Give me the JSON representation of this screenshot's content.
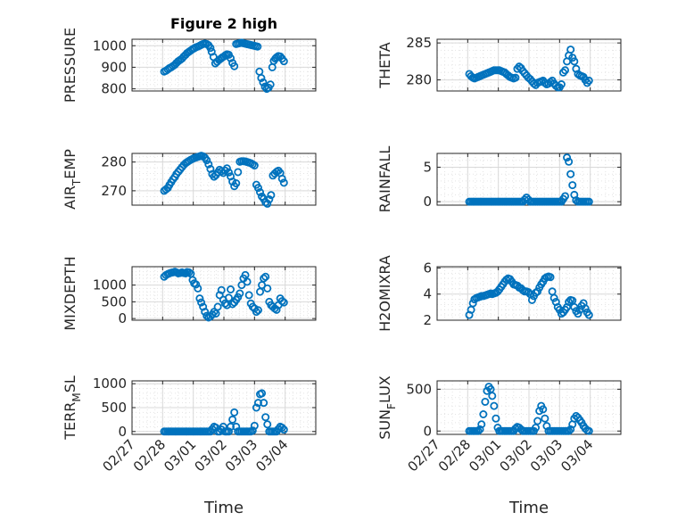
{
  "figure": {
    "title": "Figure 2 high"
  },
  "colors": {
    "marker": "#0072BD",
    "axis": "#262626",
    "grid": "#d9d9d9"
  },
  "chart_data": [
    {
      "type": "scatter",
      "ylabel_main": "PRESSURE",
      "ylabel_sub": "",
      "ylabel_tail": "",
      "xlabel": "",
      "yticks": [
        800,
        900,
        1000
      ],
      "ylim": [
        790,
        1030
      ],
      "xticks": [
        "02/27",
        "02/28",
        "03/01",
        "03/02",
        "03/03",
        "03/04"
      ],
      "xlim": [
        0,
        6
      ],
      "show_xticklabels": false,
      "x": [
        1.05,
        1.11,
        1.17,
        1.22,
        1.28,
        1.34,
        1.4,
        1.45,
        1.51,
        1.57,
        1.63,
        1.69,
        1.75,
        1.8,
        1.86,
        1.92,
        1.98,
        2.03,
        2.09,
        2.15,
        2.21,
        2.26,
        2.32,
        2.38,
        2.44,
        2.5,
        2.56,
        2.6,
        2.66,
        2.72,
        2.78,
        2.84,
        2.9,
        2.95,
        3.0,
        3.05,
        3.1,
        3.16,
        3.22,
        3.28,
        3.34,
        3.4,
        3.46,
        3.52,
        3.58,
        3.62,
        3.68,
        3.74,
        3.8,
        3.86,
        3.92,
        3.98,
        4.04,
        4.1,
        4.16,
        4.22,
        4.28,
        4.34,
        4.4,
        4.46,
        4.52,
        4.58,
        4.63,
        4.68,
        4.72,
        4.78,
        4.84,
        4.9,
        4.96
      ],
      "y": [
        880,
        884,
        890,
        896,
        900,
        906,
        912,
        920,
        928,
        934,
        940,
        950,
        958,
        966,
        972,
        978,
        984,
        988,
        993,
        996,
        1000,
        1004,
        1008,
        1010,
        1008,
        1002,
        990,
        972,
        948,
        918,
        926,
        934,
        940,
        946,
        950,
        956,
        960,
        958,
        942,
        920,
        905,
        1008,
        1010,
        1012,
        1014,
        1012,
        1010,
        1008,
        1006,
        1004,
        1002,
        1000,
        998,
        996,
        880,
        850,
        830,
        810,
        800,
        805,
        820,
        900,
        930,
        940,
        946,
        952,
        950,
        940,
        928
      ]
    },
    {
      "type": "scatter",
      "ylabel_main": "THETA",
      "ylabel_sub": "",
      "ylabel_tail": "",
      "xlabel": "",
      "yticks": [
        280,
        285
      ],
      "ylim": [
        278.5,
        285.5
      ],
      "xticks": [
        "02/27",
        "02/28",
        "03/01",
        "03/02",
        "03/03",
        "03/04"
      ],
      "xlim": [
        0,
        6
      ],
      "show_xticklabels": false,
      "x": [
        1.05,
        1.11,
        1.17,
        1.22,
        1.28,
        1.34,
        1.4,
        1.45,
        1.51,
        1.57,
        1.63,
        1.69,
        1.75,
        1.8,
        1.86,
        1.92,
        1.98,
        2.03,
        2.09,
        2.15,
        2.21,
        2.26,
        2.32,
        2.38,
        2.44,
        2.5,
        2.56,
        2.62,
        2.68,
        2.74,
        2.8,
        2.86,
        2.92,
        2.98,
        3.04,
        3.1,
        3.16,
        3.22,
        3.28,
        3.34,
        3.4,
        3.46,
        3.52,
        3.58,
        3.64,
        3.7,
        3.76,
        3.82,
        3.88,
        3.94,
        4.0,
        4.06,
        4.12,
        4.18,
        4.24,
        4.3,
        4.36,
        4.42,
        4.48,
        4.54,
        4.6,
        4.66,
        4.72,
        4.78,
        4.84,
        4.9,
        4.96
      ],
      "y": [
        280.8,
        280.5,
        280.3,
        280.2,
        280.3,
        280.4,
        280.5,
        280.6,
        280.7,
        280.8,
        280.9,
        281.0,
        281.1,
        281.2,
        281.3,
        281.3,
        281.3,
        281.3,
        281.2,
        281.1,
        281.0,
        280.8,
        280.6,
        280.4,
        280.3,
        280.2,
        280.3,
        281.5,
        281.8,
        281.6,
        281.2,
        280.9,
        280.6,
        280.3,
        280.1,
        279.8,
        279.5,
        279.3,
        279.6,
        279.7,
        279.8,
        279.9,
        279.6,
        279.4,
        279.5,
        279.7,
        279.9,
        279.5,
        279.2,
        279.0,
        279.0,
        279.4,
        281.0,
        281.3,
        282.5,
        283.3,
        284.1,
        283.0,
        282.5,
        281.5,
        280.8,
        280.6,
        280.5,
        280.4,
        280.0,
        279.6,
        279.9
      ]
    },
    {
      "type": "scatter",
      "ylabel_main": "AIR",
      "ylabel_sub": "T",
      "ylabel_tail": "EMP",
      "xlabel": "",
      "yticks": [
        270,
        280
      ],
      "ylim": [
        265,
        283
      ],
      "xticks": [
        "02/27",
        "02/28",
        "03/01",
        "03/02",
        "03/03",
        "03/04"
      ],
      "xlim": [
        0,
        6
      ],
      "show_xticklabels": false,
      "x": [
        1.05,
        1.11,
        1.17,
        1.22,
        1.28,
        1.34,
        1.4,
        1.45,
        1.51,
        1.57,
        1.63,
        1.69,
        1.75,
        1.8,
        1.86,
        1.92,
        1.98,
        2.03,
        2.09,
        2.15,
        2.21,
        2.26,
        2.32,
        2.38,
        2.44,
        2.5,
        2.56,
        2.62,
        2.68,
        2.74,
        2.8,
        2.86,
        2.92,
        2.98,
        3.04,
        3.1,
        3.16,
        3.22,
        3.28,
        3.34,
        3.4,
        3.46,
        3.52,
        3.58,
        3.64,
        3.7,
        3.76,
        3.82,
        3.88,
        3.94,
        4.0,
        4.06,
        4.12,
        4.18,
        4.24,
        4.3,
        4.36,
        4.42,
        4.48,
        4.54,
        4.6,
        4.66,
        4.72,
        4.78,
        4.84,
        4.9,
        4.96
      ],
      "y": [
        270.0,
        270.5,
        271.0,
        272.0,
        273.0,
        274.0,
        274.8,
        275.8,
        276.6,
        277.4,
        278.2,
        279.0,
        279.6,
        280.0,
        280.4,
        280.8,
        281.1,
        281.4,
        281.6,
        281.8,
        282.0,
        282.2,
        282.0,
        281.5,
        280.6,
        279.2,
        277.6,
        275.8,
        274.9,
        275.5,
        276.4,
        277.3,
        276.8,
        276.2,
        277.0,
        277.8,
        276.4,
        275.0,
        273.2,
        271.6,
        272.6,
        276.5,
        280.1,
        280.3,
        280.3,
        280.2,
        280.0,
        279.8,
        279.6,
        279.2,
        278.8,
        272.1,
        271.0,
        269.5,
        268.0,
        267.2,
        266.0,
        265.5,
        267.0,
        268.5,
        275.3,
        276.0,
        276.6,
        277.0,
        276.2,
        274.2,
        272.8
      ]
    },
    {
      "type": "scatter",
      "ylabel_main": "RAINFALL",
      "ylabel_sub": "",
      "ylabel_tail": "",
      "xlabel": "",
      "yticks": [
        0,
        5
      ],
      "ylim": [
        -0.5,
        7
      ],
      "xticks": [
        "02/27",
        "02/28",
        "03/01",
        "03/02",
        "03/03",
        "03/04"
      ],
      "xlim": [
        0,
        6
      ],
      "show_xticklabels": false,
      "x": [
        1.05,
        1.11,
        1.17,
        1.22,
        1.28,
        1.34,
        1.4,
        1.45,
        1.51,
        1.57,
        1.63,
        1.69,
        1.75,
        1.8,
        1.86,
        1.92,
        1.98,
        2.03,
        2.09,
        2.15,
        2.21,
        2.26,
        2.32,
        2.38,
        2.44,
        2.5,
        2.56,
        2.62,
        2.68,
        2.74,
        2.8,
        2.86,
        2.92,
        2.98,
        3.04,
        3.1,
        3.16,
        3.22,
        3.28,
        3.34,
        3.4,
        3.46,
        3.52,
        3.58,
        3.64,
        3.7,
        3.76,
        3.82,
        3.88,
        3.94,
        4.0,
        4.06,
        4.12,
        4.18,
        4.24,
        4.3,
        4.36,
        4.42,
        4.48,
        4.54,
        4.6,
        4.66,
        4.72,
        4.78,
        4.84,
        4.9,
        4.96
      ],
      "y": [
        0,
        0,
        0,
        0,
        0,
        0,
        0,
        0,
        0,
        0,
        0,
        0,
        0,
        0,
        0,
        0,
        0,
        0,
        0,
        0,
        0,
        0,
        0,
        0,
        0,
        0,
        0,
        0,
        0,
        0,
        0,
        0.3,
        0.6,
        0.3,
        0,
        0,
        0,
        0,
        0,
        0,
        0,
        0,
        0,
        0,
        0,
        0,
        0,
        0,
        0,
        0,
        0,
        0,
        0.4,
        0.8,
        6.4,
        5.8,
        4.0,
        2.4,
        1.0,
        0.2,
        0,
        0,
        0,
        0,
        0,
        0,
        0
      ]
    },
    {
      "type": "scatter",
      "ylabel_main": "MIXDEPTH",
      "ylabel_sub": "",
      "ylabel_tail": "",
      "xlabel": "",
      "yticks": [
        0,
        500,
        1000
      ],
      "ylim": [
        -50,
        1550
      ],
      "xticks": [
        "02/27",
        "02/28",
        "03/01",
        "03/02",
        "03/03",
        "03/04"
      ],
      "xlim": [
        0,
        6
      ],
      "show_xticklabels": false,
      "x": [
        1.05,
        1.11,
        1.17,
        1.22,
        1.28,
        1.34,
        1.4,
        1.45,
        1.51,
        1.57,
        1.63,
        1.69,
        1.75,
        1.8,
        1.86,
        1.92,
        1.98,
        2.03,
        2.09,
        2.15,
        2.21,
        2.26,
        2.32,
        2.38,
        2.44,
        2.5,
        2.56,
        2.62,
        2.68,
        2.74,
        2.8,
        2.86,
        2.92,
        2.98,
        3.04,
        3.1,
        3.16,
        3.22,
        3.28,
        3.34,
        3.4,
        3.46,
        3.52,
        3.58,
        3.64,
        3.7,
        3.76,
        3.82,
        3.88,
        3.94,
        4.0,
        4.06,
        4.12,
        4.18,
        4.24,
        4.3,
        4.36,
        4.42,
        4.48,
        4.54,
        4.6,
        4.66,
        4.72,
        4.78,
        4.84,
        4.9,
        4.96
      ],
      "y": [
        1250,
        1300,
        1330,
        1350,
        1370,
        1380,
        1400,
        1380,
        1350,
        1360,
        1380,
        1360,
        1350,
        1390,
        1380,
        1340,
        1150,
        1050,
        1020,
        900,
        600,
        480,
        350,
        200,
        80,
        30,
        60,
        120,
        200,
        150,
        350,
        700,
        850,
        560,
        450,
        400,
        620,
        870,
        430,
        480,
        560,
        640,
        750,
        1000,
        1200,
        1300,
        1100,
        700,
        450,
        350,
        300,
        200,
        250,
        800,
        1000,
        1200,
        1250,
        900,
        500,
        400,
        350,
        300,
        260,
        400,
        600,
        520,
        480
      ]
    },
    {
      "type": "scatter",
      "ylabel_main": "H2OMIXRA",
      "ylabel_sub": "",
      "ylabel_tail": "",
      "xlabel": "",
      "yticks": [
        2,
        4,
        6
      ],
      "ylim": [
        2,
        6.1
      ],
      "xticks": [
        "02/27",
        "02/28",
        "03/01",
        "03/02",
        "03/03",
        "03/04"
      ],
      "xlim": [
        0,
        6
      ],
      "show_xticklabels": false,
      "x": [
        1.05,
        1.11,
        1.17,
        1.22,
        1.28,
        1.34,
        1.4,
        1.45,
        1.51,
        1.57,
        1.63,
        1.69,
        1.75,
        1.8,
        1.86,
        1.92,
        1.98,
        2.03,
        2.09,
        2.15,
        2.21,
        2.26,
        2.32,
        2.38,
        2.44,
        2.5,
        2.56,
        2.62,
        2.68,
        2.74,
        2.8,
        2.86,
        2.92,
        2.98,
        3.04,
        3.1,
        3.16,
        3.22,
        3.28,
        3.34,
        3.4,
        3.46,
        3.52,
        3.58,
        3.64,
        3.7,
        3.76,
        3.82,
        3.88,
        3.94,
        4.0,
        4.06,
        4.12,
        4.18,
        4.24,
        4.3,
        4.36,
        4.42,
        4.48,
        4.54,
        4.6,
        4.66,
        4.72,
        4.78,
        4.84,
        4.9,
        4.96
      ],
      "y": [
        2.4,
        2.8,
        3.3,
        3.6,
        3.7,
        3.75,
        3.8,
        3.85,
        3.85,
        3.9,
        3.95,
        4.0,
        4.05,
        4.0,
        4.05,
        4.1,
        4.2,
        4.35,
        4.55,
        4.75,
        4.95,
        5.1,
        5.2,
        5.15,
        4.95,
        4.75,
        4.7,
        4.65,
        4.5,
        4.45,
        4.3,
        4.2,
        4.2,
        4.15,
        4.0,
        3.55,
        3.85,
        4.1,
        4.2,
        4.5,
        4.75,
        4.95,
        5.2,
        5.3,
        5.35,
        5.3,
        4.2,
        3.7,
        3.4,
        3.0,
        2.8,
        2.5,
        2.6,
        2.8,
        3.0,
        3.4,
        3.55,
        3.5,
        3.0,
        2.7,
        2.5,
        2.8,
        3.1,
        3.3,
        2.9,
        2.6,
        2.4
      ]
    },
    {
      "type": "scatter",
      "ylabel_main": "TERR",
      "ylabel_sub": "M",
      "ylabel_tail": "SL",
      "xlabel": "Time",
      "yticks": [
        0,
        500,
        1000
      ],
      "ylim": [
        -60,
        1060
      ],
      "xticks": [
        "02/27",
        "02/28",
        "03/01",
        "03/02",
        "03/03",
        "03/04"
      ],
      "xlim": [
        0,
        6
      ],
      "show_xticklabels": true,
      "x": [
        1.05,
        1.11,
        1.17,
        1.22,
        1.28,
        1.34,
        1.4,
        1.45,
        1.51,
        1.57,
        1.63,
        1.69,
        1.75,
        1.8,
        1.86,
        1.92,
        1.98,
        2.03,
        2.09,
        2.15,
        2.21,
        2.26,
        2.32,
        2.38,
        2.44,
        2.5,
        2.56,
        2.62,
        2.68,
        2.74,
        2.8,
        2.86,
        2.92,
        2.98,
        3.04,
        3.1,
        3.16,
        3.22,
        3.28,
        3.34,
        3.4,
        3.46,
        3.52,
        3.58,
        3.64,
        3.7,
        3.76,
        3.82,
        3.88,
        3.94,
        4.0,
        4.06,
        4.12,
        4.18,
        4.24,
        4.3,
        4.36,
        4.42,
        4.48,
        4.54,
        4.6,
        4.66,
        4.72,
        4.78,
        4.84,
        4.9,
        4.96
      ],
      "y": [
        0,
        0,
        0,
        0,
        0,
        0,
        0,
        0,
        0,
        0,
        0,
        0,
        0,
        0,
        0,
        0,
        0,
        0,
        0,
        0,
        0,
        0,
        0,
        0,
        0,
        0,
        0,
        50,
        100,
        80,
        0,
        0,
        40,
        100,
        0,
        0,
        0,
        100,
        250,
        400,
        100,
        0,
        0,
        0,
        0,
        0,
        0,
        0,
        0,
        20,
        120,
        500,
        600,
        780,
        800,
        600,
        300,
        150,
        0,
        0,
        0,
        0,
        0,
        50,
        100,
        80,
        40
      ]
    },
    {
      "type": "scatter",
      "ylabel_main": "SUN",
      "ylabel_sub": "F",
      "ylabel_tail": "LUX",
      "xlabel": "Time",
      "yticks": [
        0,
        500
      ],
      "ylim": [
        -40,
        600
      ],
      "xticks": [
        "02/27",
        "02/28",
        "03/01",
        "03/02",
        "03/03",
        "03/04"
      ],
      "xlim": [
        0,
        6
      ],
      "show_xticklabels": true,
      "x": [
        1.05,
        1.11,
        1.17,
        1.22,
        1.28,
        1.34,
        1.4,
        1.45,
        1.51,
        1.57,
        1.63,
        1.69,
        1.75,
        1.8,
        1.86,
        1.92,
        1.98,
        2.03,
        2.09,
        2.15,
        2.21,
        2.26,
        2.32,
        2.38,
        2.44,
        2.5,
        2.56,
        2.62,
        2.68,
        2.74,
        2.8,
        2.86,
        2.92,
        2.98,
        3.04,
        3.1,
        3.16,
        3.22,
        3.28,
        3.34,
        3.4,
        3.46,
        3.52,
        3.58,
        3.64,
        3.7,
        3.76,
        3.82,
        3.88,
        3.94,
        4.0,
        4.06,
        4.12,
        4.18,
        4.24,
        4.3,
        4.36,
        4.42,
        4.48,
        4.54,
        4.6,
        4.66,
        4.72,
        4.78,
        4.84,
        4.9,
        4.96
      ],
      "y": [
        0,
        0,
        0,
        0,
        0,
        0,
        20,
        80,
        200,
        350,
        480,
        530,
        500,
        420,
        300,
        150,
        40,
        0,
        0,
        0,
        0,
        0,
        0,
        0,
        0,
        0,
        30,
        50,
        40,
        20,
        0,
        0,
        0,
        0,
        0,
        0,
        0,
        40,
        120,
        240,
        300,
        260,
        150,
        60,
        0,
        0,
        0,
        0,
        0,
        0,
        0,
        0,
        0,
        0,
        0,
        0,
        20,
        80,
        150,
        180,
        160,
        130,
        100,
        60,
        30,
        10,
        0
      ]
    }
  ]
}
